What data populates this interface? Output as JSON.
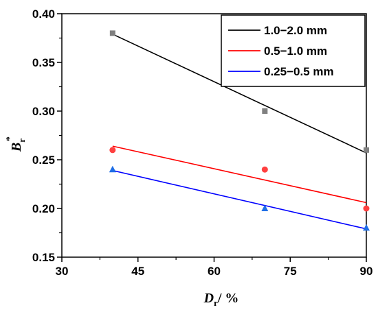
{
  "chart_data": {
    "type": "scatter",
    "title": "",
    "x": [
      40,
      70,
      90
    ],
    "xlim": [
      30,
      90
    ],
    "ylim": [
      0.15,
      0.4
    ],
    "xticks": [
      "30",
      "45",
      "60",
      "75",
      "90"
    ],
    "yticks": [
      "0.15",
      "0.20",
      "0.25",
      "0.30",
      "0.35",
      "0.40"
    ],
    "xlabel": {
      "symbol": "D",
      "subscript": "r",
      "suffix": "/ %"
    },
    "ylabel": {
      "symbol": "B",
      "subscript": "r",
      "superscript": "*"
    },
    "legend_position": "top-right",
    "grid": false,
    "series": [
      {
        "name": "1.0−2.0 mm",
        "color": "#000000",
        "marker": "square",
        "marker_color": "#808080",
        "values": [
          0.38,
          0.3,
          0.26
        ],
        "fit": {
          "start": [
            40,
            0.379
          ],
          "end": [
            90,
            0.257
          ]
        }
      },
      {
        "name": "0.5−1.0 mm",
        "color": "#ff0000",
        "marker": "circle",
        "marker_color": "#ff4040",
        "values": [
          0.26,
          0.24,
          0.2
        ],
        "fit": {
          "start": [
            40,
            0.264
          ],
          "end": [
            90,
            0.206
          ]
        }
      },
      {
        "name": "0.25−0.5 mm",
        "color": "#0000ff",
        "marker": "triangle",
        "marker_color": "#1e6ee6",
        "values": [
          0.24,
          0.2,
          0.18
        ],
        "fit": {
          "start": [
            40,
            0.239
          ],
          "end": [
            90,
            0.179
          ]
        }
      }
    ]
  }
}
